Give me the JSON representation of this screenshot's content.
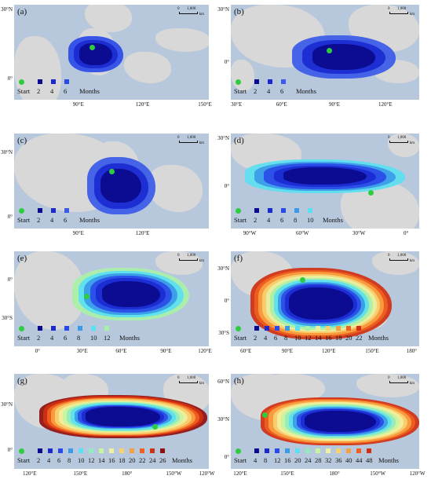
{
  "scale_bar": {
    "zero": "0",
    "dist": "1,000",
    "unit": "km"
  },
  "legend_start": "Start",
  "legend_months": "Months",
  "start_color": "#2ecc40",
  "panels": [
    {
      "label": "(a)",
      "y_ticks": [
        "30°N",
        "0°"
      ],
      "x_ticks": [
        "90°E",
        "120°E",
        "150°E"
      ],
      "legend_numbers": [
        "2",
        "4",
        "6"
      ],
      "legend_colors": [
        "#0a0a8c",
        "#1a2ad0",
        "#2a4ae8"
      ]
    },
    {
      "label": "(b)",
      "y_ticks": [
        "30°N",
        "0°"
      ],
      "x_ticks": [
        "30°E",
        "60°E",
        "90°E",
        "120°E"
      ],
      "legend_numbers": [
        "2",
        "4",
        "6"
      ],
      "legend_colors": [
        "#0a0a8c",
        "#1a2ad0",
        "#3a5ae8"
      ]
    },
    {
      "label": "(c)",
      "y_ticks": [
        "30°N",
        "0°"
      ],
      "x_ticks": [
        "90°E",
        "120°E"
      ],
      "legend_numbers": [
        "2",
        "4",
        "6"
      ],
      "legend_colors": [
        "#0a0a8c",
        "#1a2ad0",
        "#3a5ae8"
      ]
    },
    {
      "label": "(d)",
      "y_ticks": [
        "30°N",
        "0°"
      ],
      "x_ticks": [
        "90°W",
        "60°W",
        "30°W",
        "0°"
      ],
      "legend_numbers": [
        "2",
        "4",
        "6",
        "8",
        "10"
      ],
      "legend_colors": [
        "#0a0a8c",
        "#1a2ad0",
        "#2a4ae8",
        "#3a9ae8",
        "#5ae0f0"
      ]
    },
    {
      "label": "(e)",
      "y_ticks": [
        "0°",
        "30°S"
      ],
      "x_ticks": [
        "0°",
        "30°E",
        "60°E",
        "90°E",
        "120°E"
      ],
      "legend_numbers": [
        "2",
        "4",
        "6",
        "8",
        "10",
        "12"
      ],
      "legend_colors": [
        "#0a0a8c",
        "#1a2ad0",
        "#2a4ae8",
        "#3a9ae8",
        "#5ae0f0",
        "#a8f0a8"
      ]
    },
    {
      "label": "(f)",
      "y_ticks": [
        "30°N",
        "0°",
        "30°S"
      ],
      "x_ticks": [
        "60°E",
        "90°E",
        "120°E",
        "150°E",
        "180°"
      ],
      "legend_numbers": [
        "2",
        "4",
        "6",
        "8",
        "10",
        "12",
        "14",
        "16",
        "18",
        "20",
        "22"
      ],
      "legend_colors": [
        "#0a0a8c",
        "#1a2ad0",
        "#2a4ae8",
        "#3a9ae8",
        "#5ae0f0",
        "#a8f0a8",
        "#e8f0a0",
        "#f8d070",
        "#f8a040",
        "#f06020",
        "#d03010"
      ]
    },
    {
      "label": "(g)",
      "y_ticks": [
        "30°N",
        "0°"
      ],
      "x_ticks": [
        "120°E",
        "150°E",
        "180°",
        "150°W",
        "120°W"
      ],
      "legend_numbers": [
        "2",
        "4",
        "6",
        "8",
        "10",
        "12",
        "14",
        "16",
        "18",
        "20",
        "22",
        "24",
        "26"
      ],
      "legend_colors": [
        "#0a0a8c",
        "#1a2ad0",
        "#2a4ae8",
        "#3a9ae8",
        "#5ae0f0",
        "#90ecc0",
        "#c8f4a0",
        "#f0f0a0",
        "#f8d070",
        "#f8a040",
        "#f06020",
        "#d03010",
        "#901010"
      ]
    },
    {
      "label": "(h)",
      "y_ticks": [
        "60°N",
        "30°N",
        "0°"
      ],
      "x_ticks": [
        "120°E",
        "150°E",
        "180°",
        "150°W",
        "120°W"
      ],
      "legend_numbers": [
        "4",
        "8",
        "12",
        "16",
        "20",
        "24",
        "28",
        "32",
        "36",
        "40",
        "44",
        "48"
      ],
      "legend_colors": [
        "#0a0a8c",
        "#1a2ad0",
        "#2a4ae8",
        "#3a9ae8",
        "#5ae0f0",
        "#90ecc0",
        "#c8f4a0",
        "#f0f0a0",
        "#f8d070",
        "#f8a040",
        "#f06020",
        "#d03010"
      ]
    }
  ]
}
